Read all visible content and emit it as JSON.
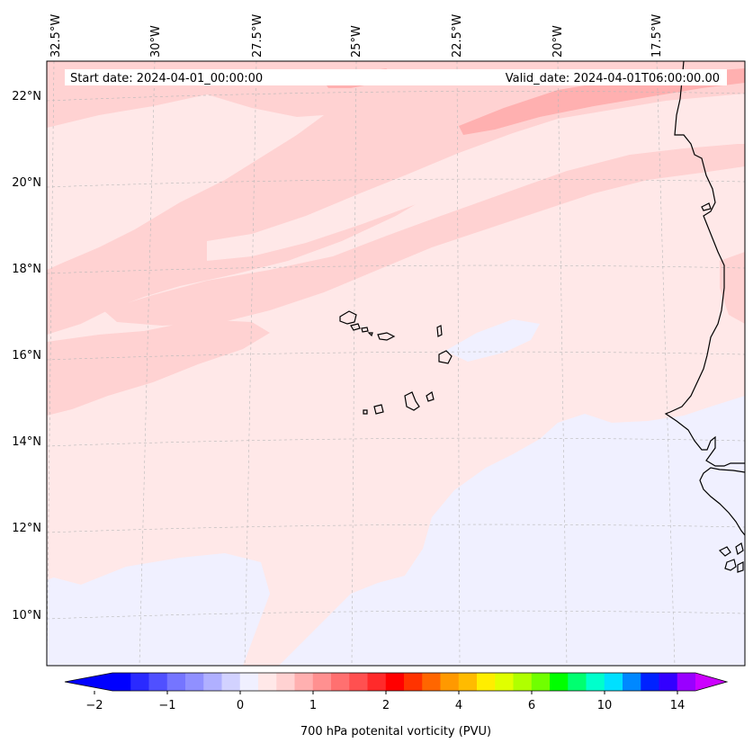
{
  "header": {
    "start_date": "Start date: 2024-04-01_00:00:00",
    "valid_date": "Valid_date: 2024-04-01T06:00:00.00"
  },
  "lon_labels": [
    "32.5°W",
    "30°W",
    "27.5°W",
    "25°W",
    "22.5°W",
    "20°W",
    "17.5°W"
  ],
  "lat_labels": [
    "22°N",
    "20°N",
    "18°N",
    "16°N",
    "14°N",
    "12°N",
    "10°N"
  ],
  "colorbar": {
    "label": "700 hPa potenital vorticity (PVU)",
    "ticks": [
      "−2",
      "−1",
      "0",
      "1",
      "2",
      "4",
      "6",
      "10",
      "14"
    ],
    "colors": [
      "#0000ff",
      "#2a2aff",
      "#5050ff",
      "#7575ff",
      "#9090ff",
      "#b0b0ff",
      "#d2d2ff",
      "#f0f0ff",
      "#ffe8e8",
      "#ffd2d2",
      "#ffb0b0",
      "#ff9090",
      "#ff7070",
      "#ff5050",
      "#ff2a2a",
      "#ff0000",
      "#ff3300",
      "#ff6600",
      "#ff9900",
      "#ffbb00",
      "#ffee00",
      "#e0ff00",
      "#b0ff00",
      "#70ff00",
      "#00ff00",
      "#00ff70",
      "#00ffcc",
      "#00e0ff",
      "#0088ff",
      "#0022ff",
      "#3300ff",
      "#9900ff"
    ],
    "under_color": "#0000ff",
    "over_color": "#cc00ff"
  },
  "field_colors": {
    "light_pink": "#ffe8e8",
    "pink": "#ffd2d2",
    "darker_pink": "#ffb0b0",
    "light_blue": "#f0f0ff"
  }
}
